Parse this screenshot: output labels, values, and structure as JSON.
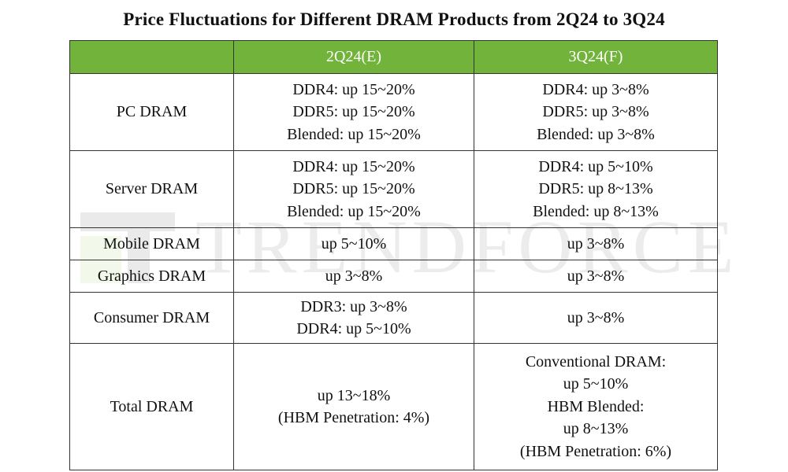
{
  "title": "Price Fluctuations for Different DRAM Products from 2Q24 to 3Q24",
  "watermark": "TRENDFORCE",
  "table": {
    "headers": [
      "",
      "2Q24(E)",
      "3Q24(F)"
    ],
    "rows": [
      {
        "label": "PC DRAM",
        "q2": [
          "DDR4: up 15~20%",
          "DDR5: up 15~20%",
          "Blended: up 15~20%"
        ],
        "q3": [
          "DDR4: up 3~8%",
          "DDR5: up 3~8%",
          "Blended: up 3~8%"
        ]
      },
      {
        "label": "Server DRAM",
        "q2": [
          "DDR4: up 15~20%",
          "DDR5: up 15~20%",
          "Blended: up 15~20%"
        ],
        "q3": [
          "DDR4: up 5~10%",
          "DDR5: up 8~13%",
          "Blended: up 8~13%"
        ]
      },
      {
        "label": "Mobile DRAM",
        "q2": [
          "up 5~10%"
        ],
        "q3": [
          "up 3~8%"
        ]
      },
      {
        "label": "Graphics DRAM",
        "q2": [
          "up 3~8%"
        ],
        "q3": [
          "up 3~8%"
        ]
      },
      {
        "label": "Consumer DRAM",
        "q2": [
          "DDR3: up 3~8%",
          "DDR4: up 5~10%"
        ],
        "q3": [
          "up 3~8%"
        ]
      },
      {
        "label": "Total DRAM",
        "q2": [
          "up 13~18%",
          "(HBM Penetration: 4%)"
        ],
        "q3": [
          "Conventional DRAM:",
          "up 5~10%",
          "HBM Blended:",
          "up 8~13%",
          "(HBM Penetration: 6%)"
        ]
      }
    ]
  },
  "colors": {
    "header_background": "#72b43b",
    "header_text": "#ffffff",
    "border": "#333333"
  }
}
